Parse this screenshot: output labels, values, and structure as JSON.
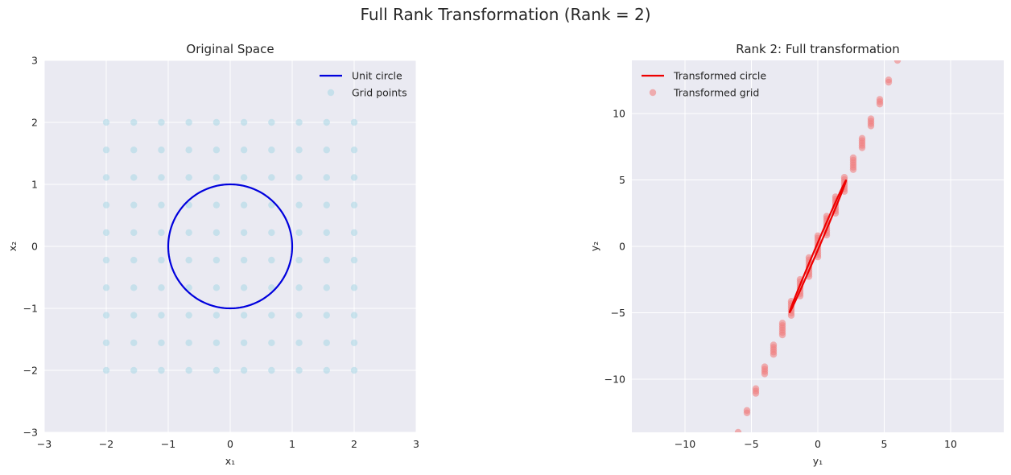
{
  "suptitle": "Full Rank Transformation (Rank = 2)",
  "colors": {
    "panel_bg": "#eaeaf2",
    "grid": "#ffffff",
    "circle_left": "#0000dd",
    "points_left": "#add8e6",
    "circle_right": "#ee0000",
    "points_right": "#f08080"
  },
  "chart_data": [
    {
      "type": "scatter",
      "title": "Original Space",
      "xlabel": "x₁",
      "ylabel": "x₂",
      "xlim": [
        -3,
        3
      ],
      "ylim": [
        -3,
        3
      ],
      "xticks": [
        -3,
        -2,
        -1,
        0,
        1,
        2,
        3
      ],
      "yticks": [
        -3,
        -2,
        -1,
        0,
        1,
        2,
        3
      ],
      "grid": true,
      "legend_position": "upper right",
      "series": [
        {
          "name": "Unit circle",
          "kind": "line",
          "shape": "unit-circle",
          "radius": 1,
          "center": [
            0,
            0
          ],
          "color": "#0000dd"
        },
        {
          "name": "Grid points",
          "kind": "scatter",
          "grid_range": [
            -2,
            2
          ],
          "grid_count": 10,
          "color": "#add8e6"
        }
      ]
    },
    {
      "type": "scatter",
      "title": "Rank 2: Full transformation",
      "xlabel": "y₁",
      "ylabel": "y₂",
      "xlim": [
        -14,
        14
      ],
      "ylim": [
        -14,
        14
      ],
      "xticks": [
        -10,
        -5,
        0,
        5,
        10
      ],
      "yticks": [
        -10,
        -5,
        0,
        5,
        10
      ],
      "grid": true,
      "legend_position": "upper left",
      "transform_matrix": [
        [
          1.5,
          1.5
        ],
        [
          3.3,
          3.7
        ]
      ],
      "series": [
        {
          "name": "Transformed circle",
          "kind": "line",
          "shape": "ellipse",
          "color": "#ee0000"
        },
        {
          "name": "Transformed grid",
          "kind": "scatter",
          "color": "#f08080"
        }
      ]
    }
  ]
}
